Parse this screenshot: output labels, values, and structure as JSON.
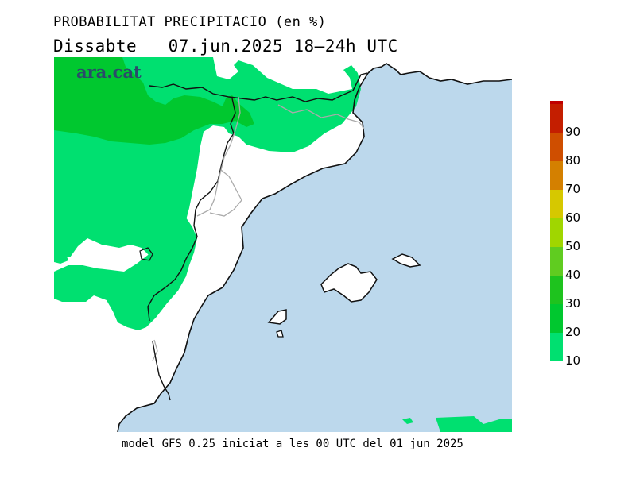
{
  "header": {
    "title": "PROBABILITAT PRECIPITACIO (en %)",
    "day": "Dissabte",
    "date": "07.jun.2025",
    "period": "18—24h UTC"
  },
  "logo": "ara.cat",
  "footer": "model GFS 0.25 iniciat a les 00 UTC del 01 jun 2025",
  "legend": {
    "levels": [
      {
        "label": "10",
        "color": "#00e070"
      },
      {
        "label": "20",
        "color": "#00c82f"
      },
      {
        "label": "30",
        "color": "#1ec31e"
      },
      {
        "label": "40",
        "color": "#60cc20"
      },
      {
        "label": "50",
        "color": "#a0d600"
      },
      {
        "label": "60",
        "color": "#d6c800"
      },
      {
        "label": "70",
        "color": "#d48000"
      },
      {
        "label": "80",
        "color": "#cf4e00"
      },
      {
        "label": "90",
        "color": "#c41e00"
      },
      {
        "label": "",
        "color": "#c00000"
      }
    ]
  },
  "colors": {
    "sea": "#bcd8ec",
    "land": "#ffffff",
    "prob_10": "#00e070",
    "prob_20": "#00c82f",
    "coast": "#111111",
    "border": "#aaaaaa"
  }
}
